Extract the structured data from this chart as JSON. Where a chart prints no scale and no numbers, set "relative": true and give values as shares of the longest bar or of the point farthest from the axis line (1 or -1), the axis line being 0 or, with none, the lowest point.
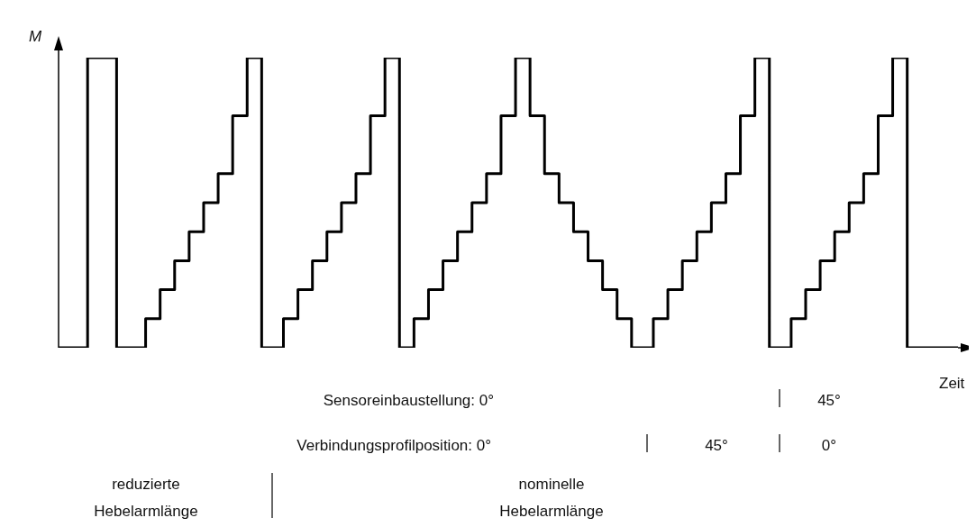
{
  "chart_data": {
    "type": "step",
    "relative": true,
    "xlabel": "Zeit",
    "ylabel": "M",
    "categories": [
      null,
      null,
      null,
      null,
      null,
      null,
      null,
      null,
      null,
      null,
      null,
      null,
      null,
      null,
      null,
      null,
      null,
      null,
      null,
      null,
      null,
      null,
      null,
      null,
      null,
      null,
      null,
      null,
      null,
      null,
      null,
      null,
      null,
      null,
      null,
      null,
      null,
      null,
      null,
      null,
      null,
      null,
      null,
      null,
      null,
      null,
      null,
      null,
      null,
      null,
      null,
      null,
      null,
      null,
      null,
      null,
      null,
      null,
      null,
      null,
      null,
      null,
      null,
      null,
      null,
      null,
      null,
      null,
      null,
      null,
      null,
      null,
      null,
      null,
      null,
      null,
      null,
      null,
      null,
      null,
      null,
      null,
      null,
      null,
      null,
      null,
      null,
      null,
      null,
      null,
      null,
      null,
      null,
      null,
      null,
      null,
      null,
      null,
      null,
      null,
      null,
      null,
      null,
      null,
      null,
      null,
      null,
      null,
      null,
      null,
      null,
      null,
      null,
      null,
      null,
      null,
      null,
      null,
      null,
      null,
      null,
      null,
      null,
      null,
      null
    ],
    "series": [
      {
        "color": "#000000",
        "values": [
          0,
          0,
          0,
          0,
          1,
          1,
          1,
          1,
          0,
          0,
          0,
          0,
          0.1,
          0.1,
          0.2,
          0.2,
          0.3,
          0.3,
          0.4,
          0.4,
          0.5,
          0.5,
          0.6,
          0.6,
          0.8,
          0.8,
          1,
          1,
          0,
          0,
          0,
          0.1,
          0.1,
          0.2,
          0.2,
          0.3,
          0.3,
          0.4,
          0.4,
          0.5,
          0.5,
          0.6,
          0.6,
          0.8,
          0.8,
          1,
          1,
          0,
          0,
          0.1,
          0.1,
          0.2,
          0.2,
          0.3,
          0.3,
          0.4,
          0.4,
          0.5,
          0.5,
          0.6,
          0.6,
          0.8,
          0.8,
          1,
          1,
          0.8,
          0.8,
          0.6,
          0.6,
          0.5,
          0.5,
          0.4,
          0.4,
          0.3,
          0.3,
          0.2,
          0.2,
          0.1,
          0.1,
          0,
          0,
          0,
          0.1,
          0.1,
          0.2,
          0.2,
          0.3,
          0.3,
          0.4,
          0.4,
          0.5,
          0.5,
          0.6,
          0.6,
          0.8,
          0.8,
          1,
          1,
          0,
          0,
          0,
          0.1,
          0.1,
          0.2,
          0.2,
          0.3,
          0.3,
          0.4,
          0.4,
          0.5,
          0.5,
          0.6,
          0.6,
          0.8,
          0.8,
          1,
          1,
          0,
          0,
          0,
          0,
          0,
          0,
          0,
          0
        ]
      }
    ],
    "annotations": [
      "Sensoreinbaustellung: 0°",
      "45°",
      "Verbindungsprofilposition: 0°",
      "45°",
      "0°",
      "reduzierte Hebelarmlänge",
      "nominelle Hebelarmlänge"
    ],
    "grid": false,
    "marker": "none",
    "line_style": "solid"
  }
}
